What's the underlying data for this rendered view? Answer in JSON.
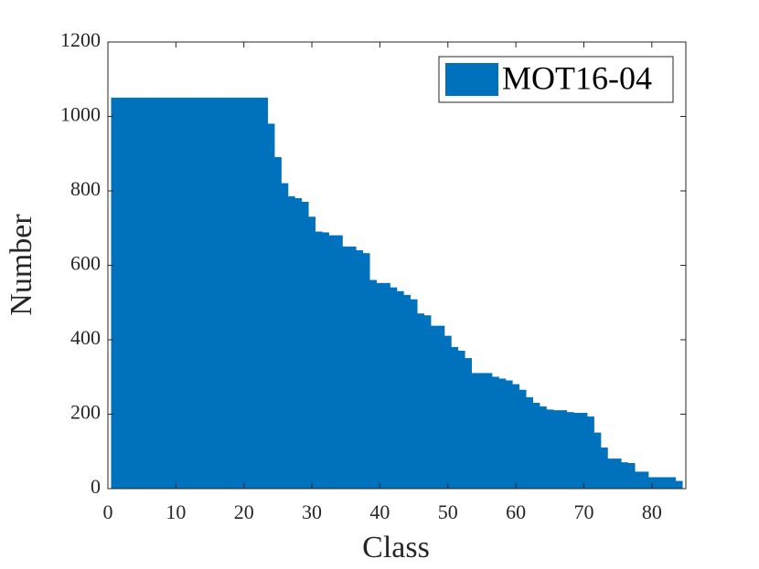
{
  "chart_data": {
    "type": "bar",
    "xlabel": "Class",
    "ylabel": "Number",
    "x": [
      1,
      2,
      3,
      4,
      5,
      6,
      7,
      8,
      9,
      10,
      11,
      12,
      13,
      14,
      15,
      16,
      17,
      18,
      19,
      20,
      21,
      22,
      23,
      24,
      25,
      26,
      27,
      28,
      29,
      30,
      31,
      32,
      33,
      34,
      35,
      36,
      37,
      38,
      39,
      40,
      41,
      42,
      43,
      44,
      45,
      46,
      47,
      48,
      49,
      50,
      51,
      52,
      53,
      54,
      55,
      56,
      57,
      58,
      59,
      60,
      61,
      62,
      63,
      64,
      65,
      66,
      67,
      68,
      69,
      70,
      71,
      72,
      73,
      74,
      75,
      76,
      77,
      78,
      79,
      80,
      81,
      82,
      83,
      84
    ],
    "series": [
      {
        "name": "MOT16-04",
        "color": "#0072bd",
        "values": [
          1050,
          1050,
          1050,
          1050,
          1050,
          1050,
          1050,
          1050,
          1050,
          1050,
          1050,
          1050,
          1050,
          1050,
          1050,
          1050,
          1050,
          1050,
          1050,
          1050,
          1050,
          1050,
          1050,
          980,
          890,
          820,
          785,
          780,
          770,
          730,
          690,
          688,
          680,
          680,
          650,
          650,
          640,
          632,
          560,
          552,
          552,
          540,
          530,
          520,
          508,
          470,
          465,
          437,
          437,
          410,
          380,
          370,
          350,
          310,
          310,
          310,
          300,
          295,
          290,
          280,
          265,
          245,
          230,
          220,
          212,
          210,
          210,
          205,
          203,
          203,
          193,
          150,
          110,
          80,
          80,
          70,
          68,
          45,
          45,
          30,
          30,
          30,
          30,
          20
        ]
      }
    ],
    "xlim": [
      0,
      85
    ],
    "xticks": [
      0,
      10,
      20,
      30,
      40,
      50,
      60,
      70,
      80
    ],
    "ylim": [
      0,
      1200
    ],
    "yticks": [
      0,
      200,
      400,
      600,
      800,
      1000,
      1200
    ],
    "legend": "northeast"
  }
}
